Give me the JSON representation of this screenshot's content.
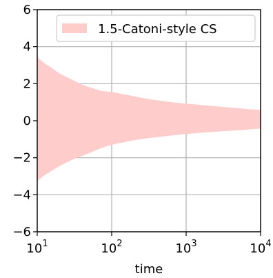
{
  "chart_data": {
    "type": "area",
    "xscale": "log",
    "xlim": [
      10,
      10000
    ],
    "ylim": [
      -6,
      6
    ],
    "xlabel": "time",
    "ylabel": "",
    "grid": true,
    "legend_position": "top-right",
    "xticks": [
      {
        "value": 10,
        "base": "10",
        "exp": "1"
      },
      {
        "value": 100,
        "base": "10",
        "exp": "2"
      },
      {
        "value": 1000,
        "base": "10",
        "exp": "3"
      },
      {
        "value": 10000,
        "base": "10",
        "exp": "4"
      }
    ],
    "yticks": [
      {
        "value": -6,
        "label": "−6"
      },
      {
        "value": -4,
        "label": "−4"
      },
      {
        "value": -2,
        "label": "−2"
      },
      {
        "value": 0,
        "label": "0"
      },
      {
        "value": 2,
        "label": "2"
      },
      {
        "value": 4,
        "label": "4"
      },
      {
        "value": 6,
        "label": "6"
      }
    ],
    "series": [
      {
        "name": "1.5-Catoni-style CS",
        "color": "#ffcccc",
        "x": [
          10,
          12,
          15,
          20,
          25,
          30,
          40,
          50,
          70,
          100,
          150,
          200,
          300,
          500,
          700,
          1000,
          2000,
          3000,
          5000,
          7000,
          10000
        ],
        "upper": [
          3.45,
          3.15,
          2.9,
          2.55,
          2.35,
          2.2,
          1.95,
          1.82,
          1.62,
          1.55,
          1.42,
          1.32,
          1.18,
          1.05,
          0.98,
          0.92,
          0.82,
          0.75,
          0.68,
          0.62,
          0.58
        ],
        "lower": [
          -3.25,
          -3.0,
          -2.75,
          -2.45,
          -2.25,
          -2.1,
          -1.9,
          -1.75,
          -1.5,
          -1.3,
          -1.15,
          -1.05,
          -0.95,
          -0.85,
          -0.78,
          -0.72,
          -0.62,
          -0.57,
          -0.52,
          -0.47,
          -0.42
        ]
      }
    ]
  }
}
